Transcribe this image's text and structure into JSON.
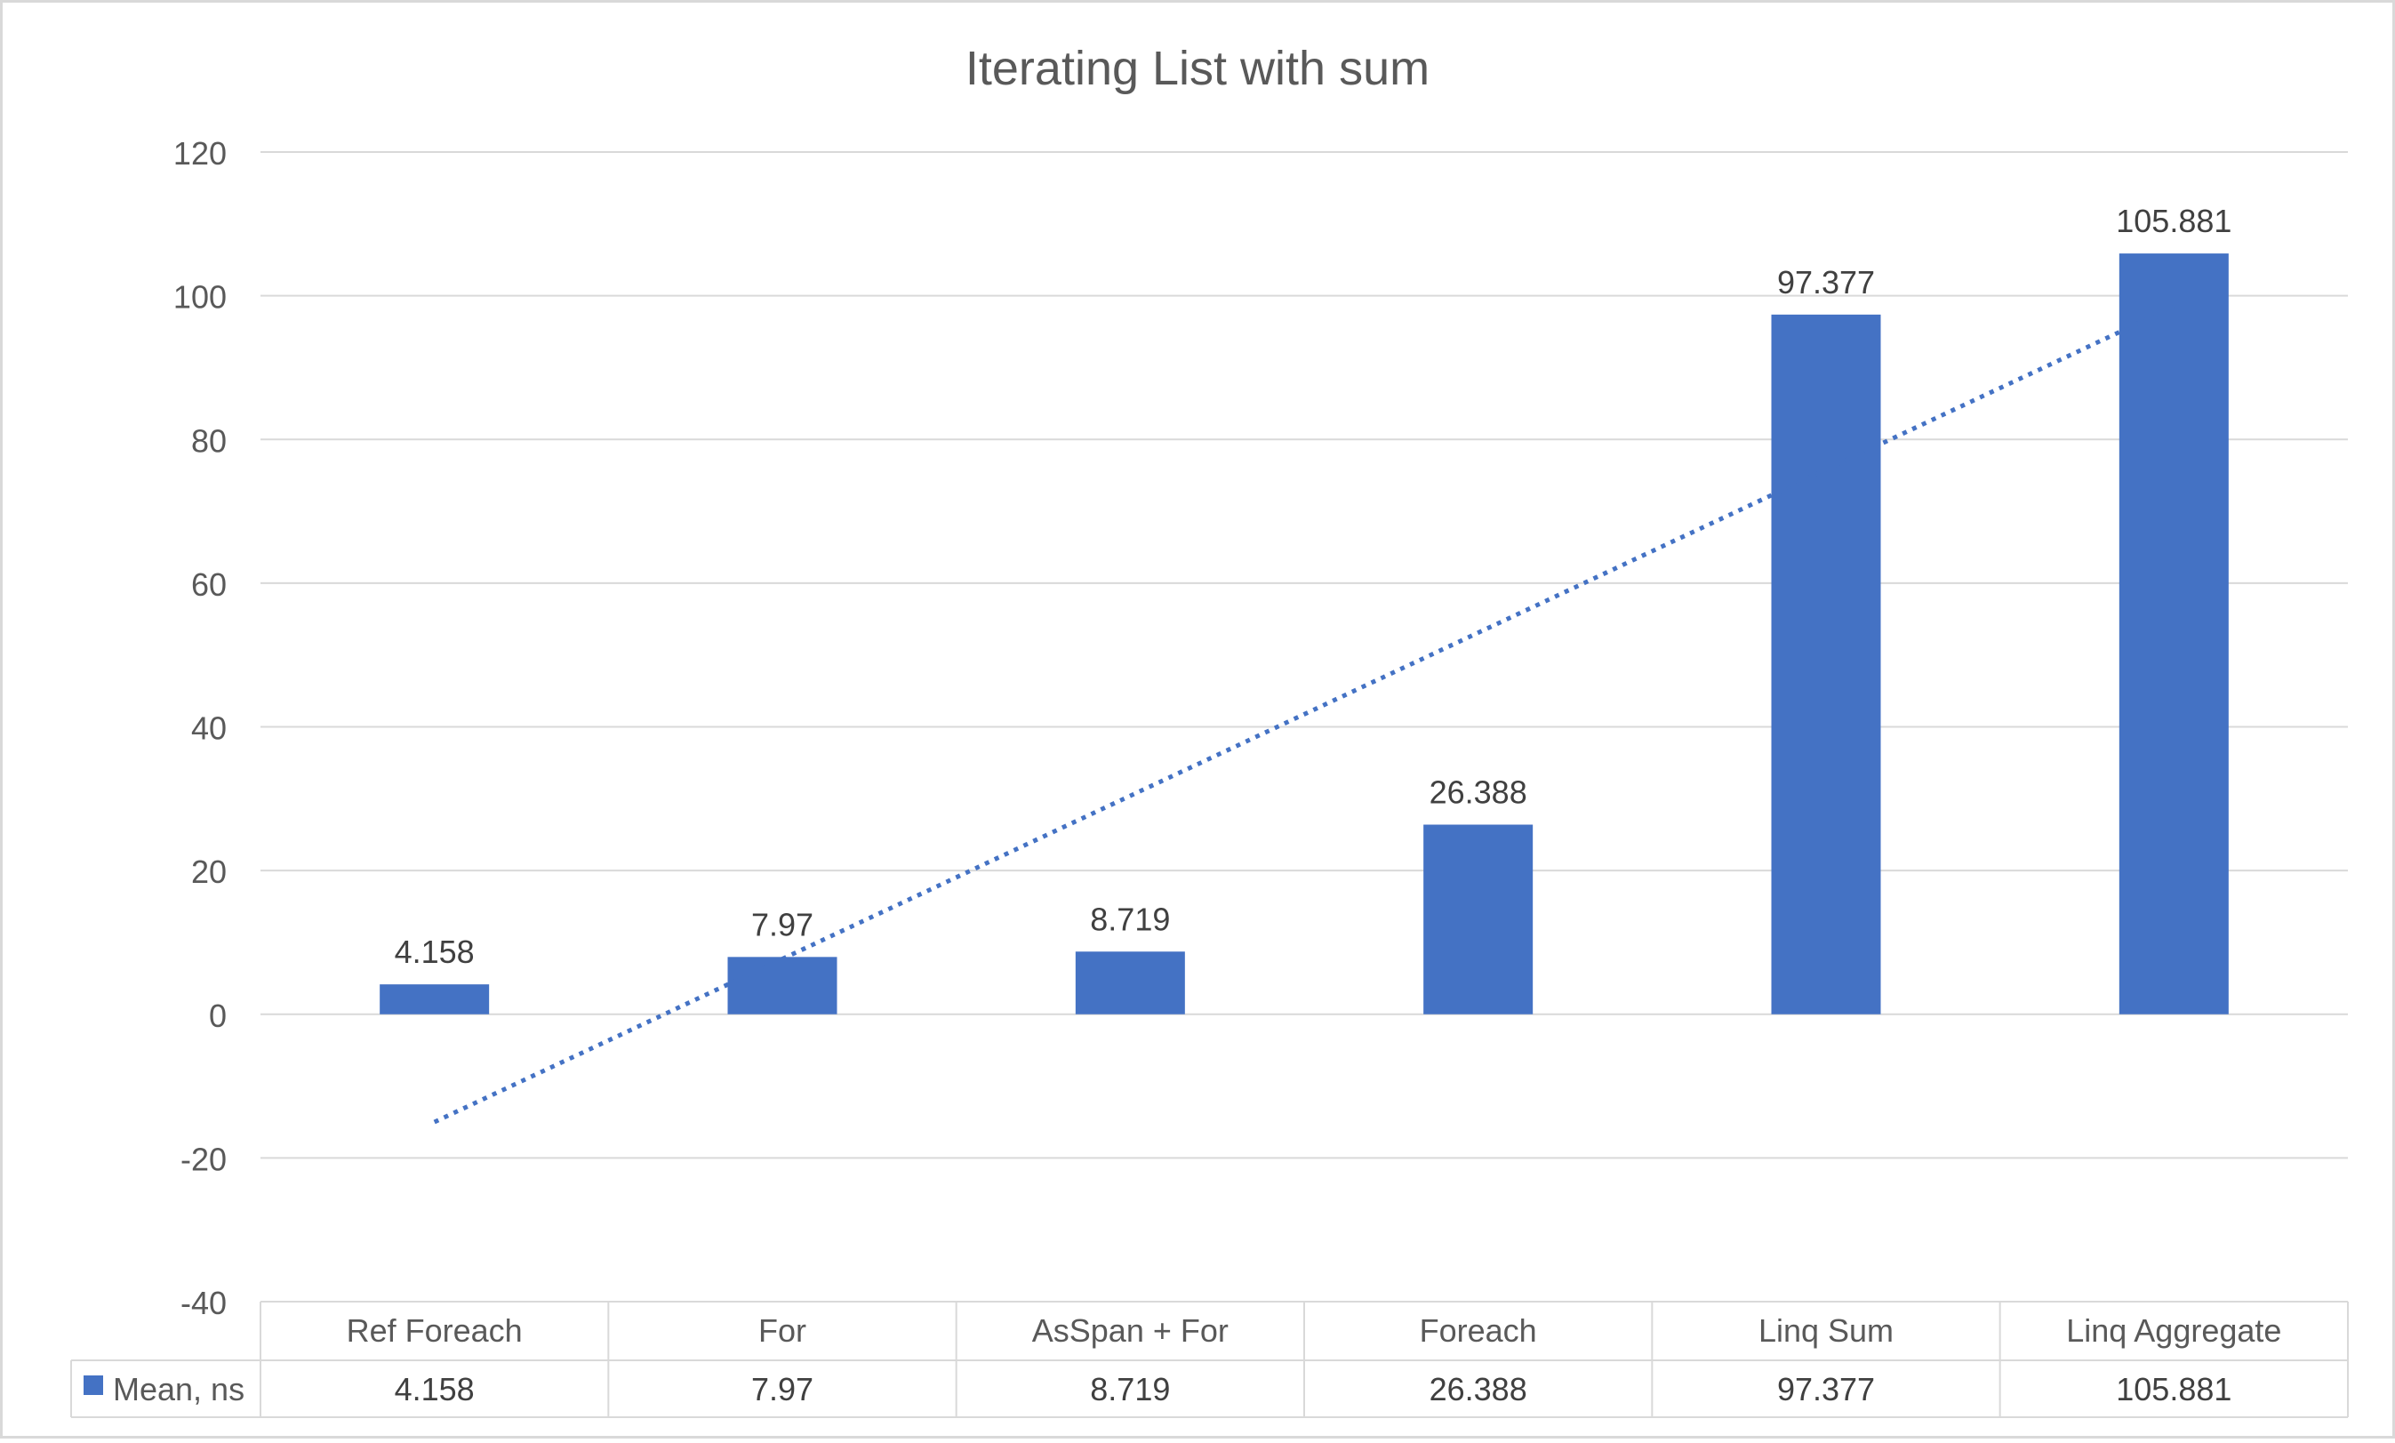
{
  "colors": {
    "bar": "#4472C4",
    "trendline": "#4472C4",
    "grid": "#D9D9D9",
    "text": "#595959",
    "label": "#404040",
    "frame": "#D9D9D9"
  },
  "chart_data": {
    "type": "bar",
    "title": "Iterating List with sum",
    "categories": [
      "Ref Foreach",
      "For",
      "AsSpan + For",
      "Foreach",
      "Linq Sum",
      "Linq Aggregate"
    ],
    "series": [
      {
        "name": "Mean, ns",
        "values": [
          4.158,
          7.97,
          8.719,
          26.388,
          97.377,
          105.881
        ],
        "data_labels": [
          "4.158",
          "7.97",
          "8.719",
          "26.388",
          "97.377",
          "105.881"
        ]
      }
    ],
    "ylim": [
      -40,
      120
    ],
    "yticks": [
      "-40",
      "-20",
      "0",
      "20",
      "40",
      "60",
      "80",
      "100",
      "120"
    ],
    "grid": true,
    "trendline": {
      "type": "linear",
      "style": "dotted"
    },
    "data_table": true
  }
}
